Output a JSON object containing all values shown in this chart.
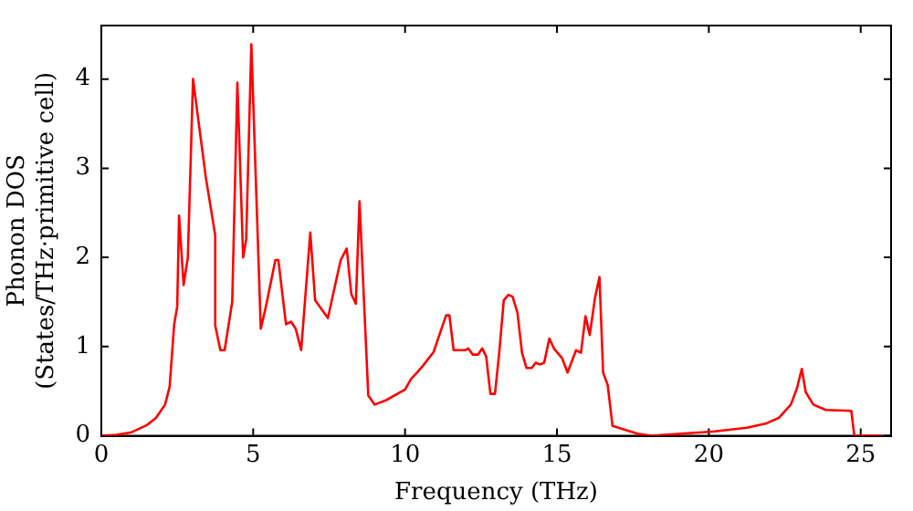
{
  "chart_data": {
    "type": "line",
    "xlabel": "Frequency (THz)",
    "ylabel": "Phonon DOS\n(States/THz·primitive cell)",
    "xlim": [
      0,
      26
    ],
    "ylim": [
      0,
      4.6
    ],
    "xticks": [
      0,
      5,
      10,
      15,
      20,
      25
    ],
    "yticks": [
      0,
      1,
      2,
      3,
      4
    ],
    "grid": false,
    "legend": false,
    "marker": "none",
    "line_style": "solid",
    "series": [
      {
        "color": "#ff0000",
        "x": [
          0,
          0.5,
          1,
          1.5,
          1.8,
          2.1,
          2.25,
          2.4,
          2.5,
          2.56,
          2.71,
          2.85,
          3.02,
          3.44,
          3.75,
          3.75,
          3.92,
          4.06,
          4.31,
          4.48,
          4.67,
          4.77,
          4.94,
          5.25,
          5.42,
          5.73,
          5.83,
          6.08,
          6.25,
          6.4,
          6.58,
          6.88,
          7.04,
          7.46,
          7.88,
          8.08,
          8.23,
          8.38,
          8.5,
          8.79,
          9.0,
          9.38,
          10.0,
          10.2,
          10.4,
          10.6,
          10.94,
          11.15,
          11.35,
          11.46,
          11.6,
          11.98,
          12.08,
          12.23,
          12.4,
          12.54,
          12.67,
          12.81,
          12.96,
          13.1,
          13.25,
          13.4,
          13.54,
          13.7,
          13.85,
          14.0,
          14.17,
          14.3,
          14.44,
          14.58,
          14.75,
          14.9,
          15.17,
          15.35,
          15.63,
          15.79,
          15.94,
          16.08,
          16.25,
          16.4,
          16.52,
          16.67,
          16.83,
          17.7,
          18.1,
          20.2,
          21.25,
          21.9,
          22.3,
          22.7,
          22.9,
          23.06,
          23.19,
          23.44,
          23.85,
          24.69,
          24.79,
          25.7
        ],
        "values": [
          0,
          0.01,
          0.04,
          0.12,
          0.2,
          0.35,
          0.55,
          1.25,
          1.45,
          2.47,
          1.69,
          2.0,
          4.0,
          2.9,
          2.25,
          1.24,
          0.96,
          0.96,
          1.5,
          3.96,
          2.0,
          2.2,
          4.39,
          1.2,
          1.45,
          1.97,
          1.97,
          1.25,
          1.28,
          1.2,
          0.96,
          2.28,
          1.52,
          1.32,
          1.97,
          2.1,
          1.59,
          1.48,
          2.63,
          0.45,
          0.35,
          0.4,
          0.52,
          0.64,
          0.71,
          0.79,
          0.94,
          1.15,
          1.35,
          1.35,
          0.96,
          0.96,
          0.98,
          0.91,
          0.91,
          0.98,
          0.89,
          0.47,
          0.47,
          0.93,
          1.52,
          1.58,
          1.56,
          1.38,
          0.93,
          0.76,
          0.76,
          0.82,
          0.8,
          0.82,
          1.09,
          0.98,
          0.87,
          0.71,
          0.96,
          0.93,
          1.34,
          1.13,
          1.54,
          1.78,
          0.71,
          0.57,
          0.11,
          0.02,
          0,
          0.05,
          0.09,
          0.14,
          0.2,
          0.35,
          0.53,
          0.75,
          0.49,
          0.35,
          0.29,
          0.28,
          0,
          0
        ]
      }
    ]
  }
}
